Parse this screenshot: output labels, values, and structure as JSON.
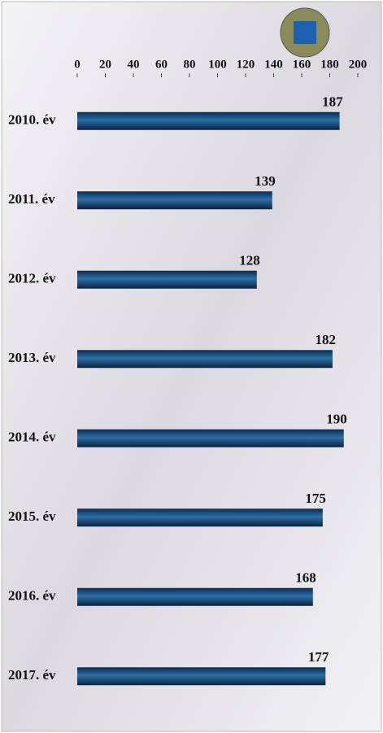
{
  "chart_data": {
    "type": "bar",
    "orientation": "horizontal",
    "categories": [
      "2010. év",
      "2011. év",
      "2012. év",
      "2013. év",
      "2014. év",
      "2015. év",
      "2016. év",
      "2017. év"
    ],
    "values": [
      187,
      139,
      128,
      182,
      190,
      175,
      168,
      177
    ],
    "color": "#163e6a",
    "xlim": [
      0,
      200
    ],
    "xticks": [
      0,
      20,
      40,
      60,
      80,
      100,
      120,
      140,
      160,
      180,
      200
    ]
  }
}
